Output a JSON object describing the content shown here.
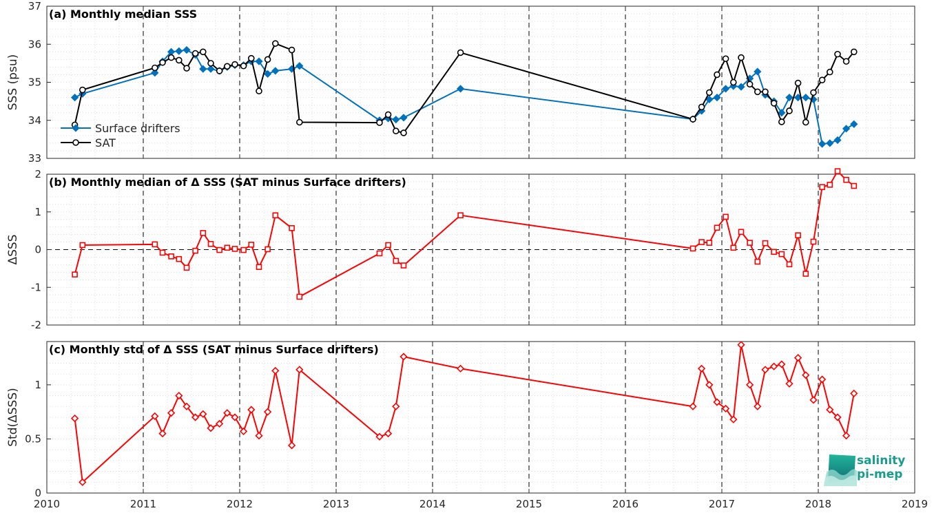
{
  "chart_data": [
    {
      "type": "line",
      "title": "(a) Monthly median SSS",
      "ylabel": "SSS (psu)",
      "ylim": [
        33,
        37
      ],
      "yticks": [
        33,
        34,
        35,
        36,
        37
      ],
      "legend": {
        "placement": "lower-left",
        "entries": [
          "Surface drifters",
          "SAT"
        ]
      },
      "series": [
        {
          "name": "Surface drifters",
          "color": "#0072BD",
          "marker": "diamond",
          "x": [
            2010.29,
            2010.37,
            2011.12,
            2011.2,
            2011.29,
            2011.37,
            2011.45,
            2011.54,
            2011.62,
            2011.7,
            2011.79,
            2011.87,
            2011.95,
            2012.04,
            2012.12,
            2012.2,
            2012.29,
            2012.37,
            2012.54,
            2012.62,
            2013.45,
            2013.54,
            2013.62,
            2013.7,
            2014.29,
            2016.7,
            2016.79,
            2016.87,
            2016.95,
            2017.04,
            2017.12,
            2017.2,
            2017.29,
            2017.37,
            2017.45,
            2017.54,
            2017.62,
            2017.7,
            2017.79,
            2017.87,
            2017.95,
            2018.04,
            2018.12,
            2018.2,
            2018.29,
            2018.37
          ],
          "y": [
            34.6,
            34.7,
            35.25,
            35.55,
            35.8,
            35.82,
            35.85,
            35.72,
            35.35,
            35.35,
            35.3,
            35.4,
            35.45,
            35.45,
            35.55,
            35.55,
            35.22,
            35.3,
            35.35,
            35.43,
            34.0,
            34.05,
            34.02,
            34.07,
            34.83,
            34.03,
            34.25,
            34.55,
            34.6,
            34.83,
            34.9,
            34.88,
            35.1,
            35.28,
            34.67,
            34.5,
            34.2,
            34.6,
            34.6,
            34.6,
            34.55,
            33.38,
            33.4,
            33.48,
            33.78,
            33.9
          ]
        },
        {
          "name": "SAT",
          "color": "#000000",
          "marker": "circle",
          "x": [
            2010.29,
            2010.37,
            2011.12,
            2011.2,
            2011.29,
            2011.37,
            2011.45,
            2011.54,
            2011.62,
            2011.7,
            2011.79,
            2011.87,
            2011.95,
            2012.04,
            2012.12,
            2012.2,
            2012.29,
            2012.37,
            2012.54,
            2012.62,
            2013.45,
            2013.54,
            2013.62,
            2013.7,
            2014.29,
            2016.7,
            2016.79,
            2016.87,
            2016.95,
            2017.04,
            2017.12,
            2017.2,
            2017.29,
            2017.37,
            2017.45,
            2017.54,
            2017.62,
            2017.7,
            2017.79,
            2017.87,
            2017.95,
            2018.04,
            2018.12,
            2018.2,
            2018.29,
            2018.37
          ],
          "y": [
            33.88,
            34.8,
            35.38,
            35.52,
            35.65,
            35.58,
            35.37,
            35.76,
            35.8,
            35.5,
            35.3,
            35.42,
            35.47,
            35.43,
            35.63,
            34.77,
            35.6,
            36.02,
            35.85,
            33.95,
            33.94,
            34.15,
            33.72,
            33.67,
            35.78,
            34.03,
            34.35,
            34.73,
            35.2,
            35.62,
            35.0,
            35.65,
            34.95,
            34.75,
            34.75,
            34.45,
            33.96,
            34.25,
            34.98,
            33.95,
            34.73,
            35.06,
            35.27,
            35.74,
            35.55,
            35.8
          ]
        }
      ]
    },
    {
      "type": "line",
      "title": "(b) Monthly median of Δ SSS (SAT minus Surface drifters)",
      "ylabel": "ΔSSS",
      "ylim": [
        -2,
        2
      ],
      "yticks": [
        -2,
        -1,
        0,
        1,
        2
      ],
      "zero_line": true,
      "series": [
        {
          "color": "#FF0000",
          "marker": "square",
          "x": [
            2010.29,
            2010.37,
            2011.12,
            2011.2,
            2011.29,
            2011.37,
            2011.45,
            2011.54,
            2011.62,
            2011.7,
            2011.79,
            2011.87,
            2011.95,
            2012.04,
            2012.12,
            2012.2,
            2012.29,
            2012.37,
            2012.54,
            2012.62,
            2013.45,
            2013.54,
            2013.62,
            2013.7,
            2014.29,
            2016.7,
            2016.79,
            2016.87,
            2016.95,
            2017.04,
            2017.12,
            2017.2,
            2017.29,
            2017.37,
            2017.45,
            2017.54,
            2017.62,
            2017.7,
            2017.79,
            2017.87,
            2017.95,
            2018.04,
            2018.12,
            2018.2,
            2018.29,
            2018.37
          ],
          "y": [
            -0.66,
            0.12,
            0.14,
            -0.08,
            -0.18,
            -0.25,
            -0.48,
            -0.03,
            0.44,
            0.15,
            -0.01,
            0.05,
            0.02,
            -0.01,
            0.13,
            -0.46,
            0.01,
            0.91,
            0.57,
            -1.25,
            -0.1,
            0.12,
            -0.3,
            -0.42,
            0.91,
            0.03,
            0.2,
            0.18,
            0.58,
            0.87,
            0.05,
            0.47,
            0.18,
            -0.32,
            0.17,
            -0.06,
            -0.12,
            -0.39,
            0.38,
            -0.64,
            0.21,
            1.66,
            1.72,
            2.08,
            1.85,
            1.69
          ]
        }
      ]
    },
    {
      "type": "line",
      "title": "(c) Monthly std of Δ SSS (SAT minus Surface drifters)",
      "ylabel": "Std(ΔSSS)",
      "ylim": [
        0,
        1.4
      ],
      "yticks": [
        0,
        0.5,
        1
      ],
      "ytick_labels": [
        "0",
        "0.5",
        "1"
      ],
      "series": [
        {
          "color": "#FF0000",
          "marker": "diamond",
          "x": [
            2010.29,
            2010.37,
            2011.12,
            2011.2,
            2011.29,
            2011.37,
            2011.45,
            2011.54,
            2011.62,
            2011.7,
            2011.79,
            2011.87,
            2011.95,
            2012.04,
            2012.12,
            2012.2,
            2012.29,
            2012.37,
            2012.54,
            2012.62,
            2013.45,
            2013.54,
            2013.62,
            2013.7,
            2014.29,
            2016.7,
            2016.79,
            2016.87,
            2016.95,
            2017.04,
            2017.12,
            2017.2,
            2017.29,
            2017.37,
            2017.45,
            2017.54,
            2017.62,
            2017.7,
            2017.79,
            2017.87,
            2017.95,
            2018.04,
            2018.12,
            2018.2,
            2018.29,
            2018.37
          ],
          "y": [
            0.69,
            0.1,
            0.71,
            0.55,
            0.74,
            0.9,
            0.8,
            0.7,
            0.73,
            0.6,
            0.64,
            0.74,
            0.7,
            0.57,
            0.77,
            0.53,
            0.75,
            1.13,
            0.44,
            1.14,
            0.52,
            0.55,
            0.8,
            1.26,
            1.15,
            0.8,
            1.15,
            1.0,
            0.84,
            0.78,
            0.68,
            1.37,
            1.0,
            0.8,
            1.14,
            1.17,
            1.19,
            1.01,
            1.25,
            1.09,
            0.86,
            1.05,
            0.77,
            0.7,
            0.53,
            0.92
          ]
        }
      ]
    }
  ],
  "xaxis": {
    "xlim": [
      2010,
      2019
    ],
    "ticks": [
      2010,
      2011,
      2012,
      2013,
      2014,
      2015,
      2016,
      2017,
      2018,
      2019
    ],
    "tick_labels": [
      "2010",
      "2011",
      "2012",
      "2013",
      "2014",
      "2015",
      "2016",
      "2017",
      "2018",
      "2019"
    ],
    "dashed_year_lines": [
      2011,
      2012,
      2013,
      2014,
      2015,
      2016,
      2017,
      2018
    ]
  },
  "logo": {
    "line1": "salinity",
    "line2": "pi-mep"
  }
}
